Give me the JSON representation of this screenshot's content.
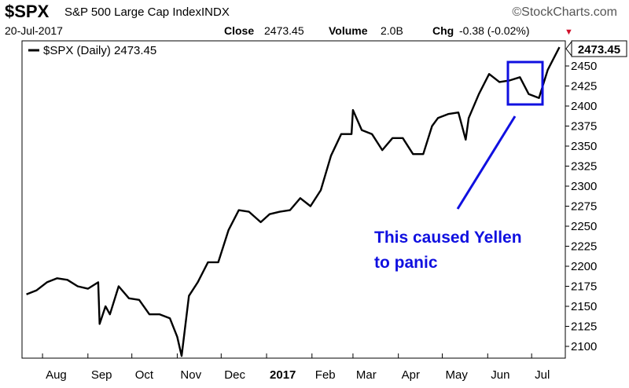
{
  "header": {
    "symbol": "$SPX",
    "name": "S&P 500 Large Cap Index",
    "exchange": "INDX",
    "date": "20-Jul-2017",
    "source": "©StockCharts.com",
    "close_label": "Close",
    "close_value": "2473.45",
    "volume_label": "Volume",
    "volume_value": "2.0B",
    "chg_label": "Chg",
    "chg_value": "-0.38 (-0.02%)",
    "chg_arrow": "▼"
  },
  "legend": {
    "label": "$SPX (Daily) 2473.45"
  },
  "last_price_label": "2473.45",
  "annotation": {
    "line1": "This caused Yellen",
    "line2": "to panic"
  },
  "colors": {
    "price_line": "#000000",
    "annotation": "#1010e0",
    "chg_arrow": "#d0102a",
    "grid": "#e6e6e6"
  },
  "chart_data": {
    "type": "line",
    "title": "$SPX S&P 500 Large Cap Index INDX",
    "series": [
      {
        "name": "$SPX (Daily)",
        "x": [
          "2016-07-21",
          "2016-07-28",
          "2016-08-04",
          "2016-08-11",
          "2016-08-18",
          "2016-08-25",
          "2016-09-01",
          "2016-09-08",
          "2016-09-09",
          "2016-09-13",
          "2016-09-16",
          "2016-09-22",
          "2016-09-29",
          "2016-10-06",
          "2016-10-13",
          "2016-10-20",
          "2016-10-27",
          "2016-11-01",
          "2016-11-04",
          "2016-11-09",
          "2016-11-15",
          "2016-11-22",
          "2016-11-29",
          "2016-12-06",
          "2016-12-13",
          "2016-12-20",
          "2016-12-28",
          "2017-01-03",
          "2017-01-10",
          "2017-01-17",
          "2017-01-24",
          "2017-01-31",
          "2017-02-07",
          "2017-02-14",
          "2017-02-21",
          "2017-02-28",
          "2017-03-01",
          "2017-03-07",
          "2017-03-14",
          "2017-03-21",
          "2017-03-28",
          "2017-04-04",
          "2017-04-11",
          "2017-04-18",
          "2017-04-24",
          "2017-04-28",
          "2017-05-05",
          "2017-05-12",
          "2017-05-17",
          "2017-05-19",
          "2017-05-26",
          "2017-06-02",
          "2017-06-09",
          "2017-06-16",
          "2017-06-23",
          "2017-06-29",
          "2017-07-06",
          "2017-07-12",
          "2017-07-20"
        ],
        "y": [
          2165,
          2170,
          2180,
          2185,
          2183,
          2175,
          2172,
          2180,
          2128,
          2150,
          2140,
          2175,
          2160,
          2158,
          2140,
          2140,
          2135,
          2112,
          2088,
          2163,
          2180,
          2205,
          2205,
          2245,
          2270,
          2268,
          2255,
          2265,
          2268,
          2270,
          2285,
          2275,
          2295,
          2338,
          2365,
          2365,
          2395,
          2370,
          2365,
          2345,
          2360,
          2360,
          2340,
          2340,
          2375,
          2385,
          2390,
          2392,
          2358,
          2385,
          2415,
          2440,
          2430,
          2432,
          2436,
          2415,
          2410,
          2445,
          2473.45
        ]
      }
    ],
    "x_ticks": [
      "Aug",
      "Sep",
      "Oct",
      "Nov",
      "Dec",
      "2017",
      "Feb",
      "Mar",
      "Apr",
      "May",
      "Jun",
      "Jul"
    ],
    "y_ticks": [
      2100,
      2125,
      2150,
      2175,
      2200,
      2225,
      2250,
      2275,
      2300,
      2325,
      2350,
      2375,
      2400,
      2425,
      2450
    ],
    "ylim": [
      2080,
      2485
    ],
    "xlabel": "",
    "ylabel": "",
    "grid": false,
    "legend_position": "top-left",
    "last_value": 2473.45
  }
}
